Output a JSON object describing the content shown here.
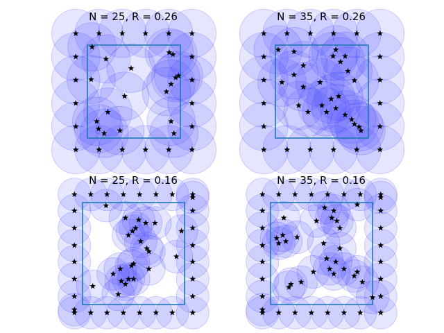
{
  "chart_data": [
    {
      "type": "scatter",
      "title": "N = 25, R = 0.26",
      "radius": 0.26,
      "square": [
        0,
        1
      ],
      "points": [
        [
          -0.125,
          1.125
        ],
        [
          0.125,
          1.125
        ],
        [
          0.375,
          1.125
        ],
        [
          0.625,
          1.125
        ],
        [
          0.875,
          1.125
        ],
        [
          1.125,
          1.125
        ],
        [
          -0.125,
          0.875
        ],
        [
          -0.125,
          0.625
        ],
        [
          -0.125,
          0.375
        ],
        [
          -0.125,
          0.125
        ],
        [
          -0.125,
          -0.125
        ],
        [
          1.125,
          0.875
        ],
        [
          1.125,
          0.625
        ],
        [
          1.125,
          0.375
        ],
        [
          1.125,
          0.125
        ],
        [
          1.125,
          -0.125
        ],
        [
          0.125,
          -0.125
        ],
        [
          0.375,
          -0.125
        ],
        [
          0.625,
          -0.125
        ],
        [
          0.875,
          -0.125
        ],
        [
          0.05,
          0.98
        ],
        [
          0.2,
          0.85
        ],
        [
          0.47,
          0.75
        ],
        [
          0.88,
          0.92
        ],
        [
          0.92,
          0.9
        ],
        [
          0.04,
          0.63
        ],
        [
          0.4,
          0.45
        ],
        [
          0.85,
          0.5
        ],
        [
          0.9,
          0.58
        ],
        [
          0.95,
          0.65
        ],
        [
          0.98,
          0.67
        ],
        [
          0.22,
          0.28
        ],
        [
          0.1,
          0.18
        ],
        [
          0.12,
          0.1
        ],
        [
          0.18,
          0.05
        ],
        [
          0.35,
          0.08
        ],
        [
          0.9,
          0.18
        ],
        [
          0.93,
          0.05
        ]
      ]
    },
    {
      "type": "scatter",
      "title": "N = 35, R = 0.26",
      "radius": 0.26,
      "square": [
        0,
        1
      ],
      "points": [
        [
          -0.125,
          1.125
        ],
        [
          0.125,
          1.125
        ],
        [
          0.375,
          1.125
        ],
        [
          0.625,
          1.125
        ],
        [
          0.875,
          1.125
        ],
        [
          1.125,
          1.125
        ],
        [
          -0.125,
          0.875
        ],
        [
          -0.125,
          0.625
        ],
        [
          -0.125,
          0.375
        ],
        [
          -0.125,
          0.125
        ],
        [
          -0.125,
          -0.125
        ],
        [
          1.125,
          0.875
        ],
        [
          1.125,
          0.625
        ],
        [
          1.125,
          0.375
        ],
        [
          1.125,
          0.125
        ],
        [
          1.125,
          -0.125
        ],
        [
          0.125,
          -0.125
        ],
        [
          0.375,
          -0.125
        ],
        [
          0.625,
          -0.125
        ],
        [
          0.875,
          -0.125
        ],
        [
          0.03,
          0.95
        ],
        [
          0.2,
          0.93
        ],
        [
          0.65,
          0.95
        ],
        [
          0.62,
          0.88
        ],
        [
          0.75,
          0.88
        ],
        [
          0.07,
          0.6
        ],
        [
          0.2,
          0.68
        ],
        [
          0.3,
          0.78
        ],
        [
          0.3,
          0.55
        ],
        [
          0.48,
          0.6
        ],
        [
          0.7,
          0.82
        ],
        [
          0.78,
          0.72
        ],
        [
          0.85,
          0.62
        ],
        [
          0.5,
          0.35
        ],
        [
          0.55,
          0.28
        ],
        [
          0.65,
          0.32
        ],
        [
          0.68,
          0.45
        ],
        [
          0.75,
          0.25
        ],
        [
          0.82,
          0.2
        ],
        [
          0.85,
          0.15
        ],
        [
          0.9,
          0.12
        ],
        [
          0.92,
          0.08
        ],
        [
          0.35,
          0.28
        ],
        [
          0.25,
          0.35
        ],
        [
          0.6,
          0.42
        ]
      ]
    },
    {
      "type": "scatter",
      "title": "N = 25, R = 0.16",
      "radius": 0.16,
      "square": [
        0,
        1
      ],
      "points": [
        [
          -0.08,
          1.08
        ],
        [
          0.08,
          1.08
        ],
        [
          0.24,
          1.08
        ],
        [
          0.4,
          1.08
        ],
        [
          0.56,
          1.08
        ],
        [
          0.72,
          1.08
        ],
        [
          0.88,
          1.08
        ],
        [
          1.08,
          1.08
        ],
        [
          -0.08,
          0.92
        ],
        [
          -0.08,
          0.75
        ],
        [
          -0.08,
          0.58
        ],
        [
          -0.08,
          0.42
        ],
        [
          -0.08,
          0.25
        ],
        [
          -0.08,
          0.08
        ],
        [
          -0.08,
          -0.08
        ],
        [
          1.08,
          0.92
        ],
        [
          1.08,
          0.75
        ],
        [
          1.08,
          0.58
        ],
        [
          1.08,
          0.42
        ],
        [
          1.08,
          0.25
        ],
        [
          1.08,
          0.08
        ],
        [
          1.08,
          -0.08
        ],
        [
          0.08,
          -0.08
        ],
        [
          0.24,
          -0.08
        ],
        [
          0.4,
          -0.08
        ],
        [
          0.56,
          -0.08
        ],
        [
          0.72,
          -0.08
        ],
        [
          0.88,
          -0.08
        ],
        [
          1.08,
          1.05
        ],
        [
          -0.08,
          -0.05
        ],
        [
          0.23,
          0.97
        ],
        [
          0.42,
          0.85
        ],
        [
          0.55,
          0.83
        ],
        [
          0.71,
          0.8
        ],
        [
          0.62,
          0.8
        ],
        [
          0.49,
          0.72
        ],
        [
          0.52,
          0.75
        ],
        [
          0.45,
          0.68
        ],
        [
          0.57,
          0.62
        ],
        [
          0.63,
          0.55
        ],
        [
          0.65,
          0.52
        ],
        [
          0.97,
          0.72
        ],
        [
          0.92,
          0.47
        ],
        [
          0.48,
          0.38
        ],
        [
          0.5,
          0.4
        ],
        [
          0.65,
          0.35
        ],
        [
          0.37,
          0.35
        ],
        [
          0.3,
          0.3
        ],
        [
          0.38,
          0.23
        ],
        [
          0.45,
          0.25
        ],
        [
          0.5,
          0.25
        ],
        [
          0.42,
          0.2
        ],
        [
          0.35,
          0.1
        ],
        [
          0.1,
          0.18
        ]
      ]
    },
    {
      "type": "scatter",
      "title": "N = 35, R = 0.16",
      "radius": 0.16,
      "square": [
        0,
        1
      ],
      "points": [
        [
          -0.08,
          1.08
        ],
        [
          0.08,
          1.08
        ],
        [
          0.24,
          1.08
        ],
        [
          0.4,
          1.08
        ],
        [
          0.56,
          1.08
        ],
        [
          0.72,
          1.08
        ],
        [
          0.88,
          1.08
        ],
        [
          1.08,
          1.08
        ],
        [
          -0.08,
          0.92
        ],
        [
          -0.08,
          0.75
        ],
        [
          -0.08,
          0.58
        ],
        [
          -0.08,
          0.42
        ],
        [
          -0.08,
          0.25
        ],
        [
          -0.08,
          0.08
        ],
        [
          -0.08,
          -0.08
        ],
        [
          1.08,
          0.92
        ],
        [
          1.08,
          0.75
        ],
        [
          1.08,
          0.58
        ],
        [
          1.08,
          0.42
        ],
        [
          1.08,
          0.25
        ],
        [
          1.08,
          0.08
        ],
        [
          1.08,
          -0.08
        ],
        [
          0.08,
          -0.08
        ],
        [
          0.24,
          -0.08
        ],
        [
          0.4,
          -0.08
        ],
        [
          0.56,
          -0.08
        ],
        [
          0.72,
          -0.08
        ],
        [
          0.88,
          -0.08
        ],
        [
          1.08,
          1.05
        ],
        [
          -0.08,
          -0.05
        ],
        [
          0.53,
          0.95
        ],
        [
          0.62,
          0.92
        ],
        [
          0.85,
          0.98
        ],
        [
          0.13,
          0.85
        ],
        [
          0.45,
          0.82
        ],
        [
          0.6,
          0.85
        ],
        [
          0.65,
          0.82
        ],
        [
          0.68,
          0.75
        ],
        [
          0.12,
          0.68
        ],
        [
          0.06,
          0.65
        ],
        [
          0.08,
          0.6
        ],
        [
          0.15,
          0.62
        ],
        [
          0.26,
          0.66
        ],
        [
          0.52,
          0.6
        ],
        [
          0.68,
          0.55
        ],
        [
          0.64,
          0.42
        ],
        [
          0.58,
          0.35
        ],
        [
          0.55,
          0.45
        ],
        [
          0.72,
          0.35
        ],
        [
          0.62,
          0.3
        ],
        [
          0.42,
          0.32
        ],
        [
          0.3,
          0.22
        ],
        [
          0.2,
          0.2
        ],
        [
          0.18,
          0.17
        ],
        [
          0.82,
          0.28
        ],
        [
          0.9,
          0.22
        ],
        [
          1.0,
          0.07
        ],
        [
          0.85,
          0.32
        ]
      ]
    }
  ]
}
